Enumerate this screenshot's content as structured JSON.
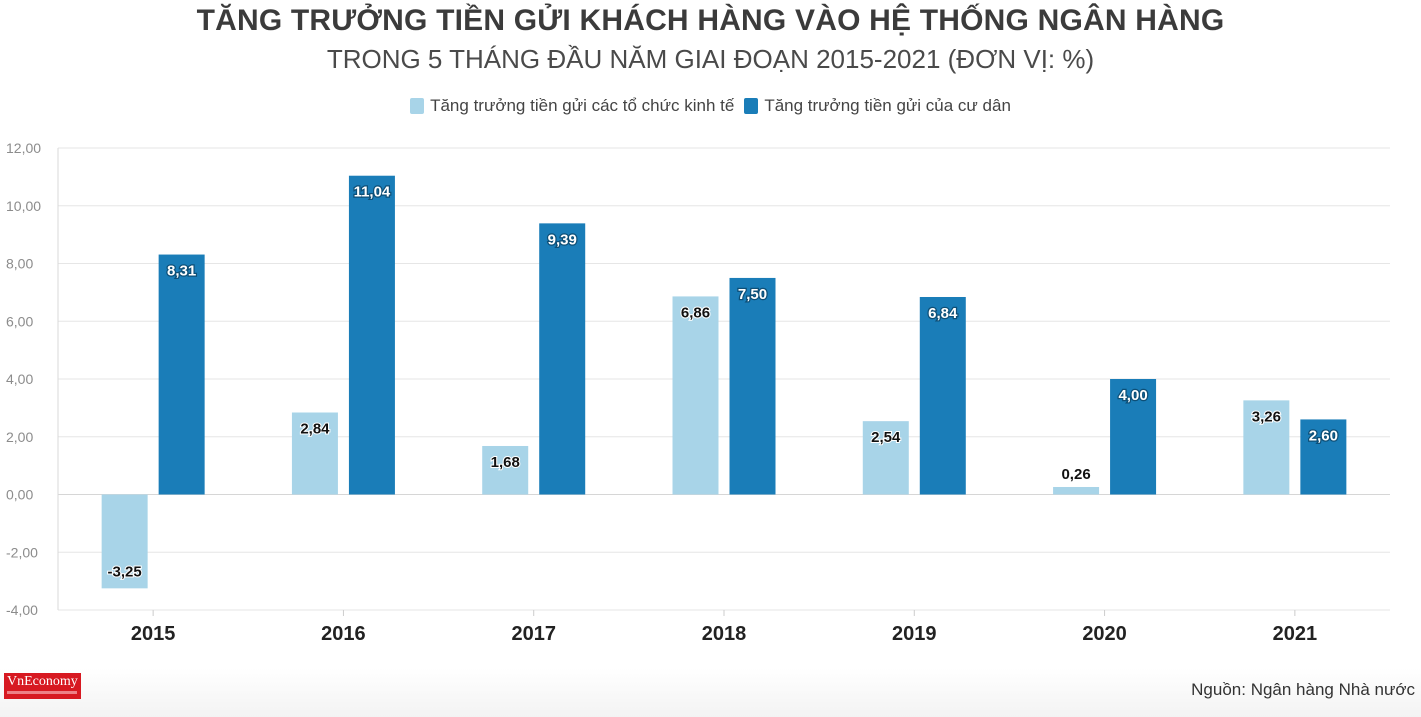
{
  "title": "TĂNG TRƯỞNG TIỀN GỬI KHÁCH HÀNG VÀO HỆ THỐNG NGÂN HÀNG",
  "subtitle": "TRONG 5 THÁNG ĐẦU NĂM GIAI ĐOẠN 2015-2021 (ĐƠN VỊ: %)",
  "logo_text": "VnEconomy",
  "source": "Nguồn: Ngân hàng Nhà nước",
  "chart_data": {
    "type": "bar",
    "categories": [
      "2015",
      "2016",
      "2017",
      "2018",
      "2019",
      "2020",
      "2021"
    ],
    "series": [
      {
        "name": "Tăng trưởng tiền gửi các tổ chức kinh tế",
        "color": "#a8d4e8",
        "values": [
          -3.25,
          2.84,
          1.68,
          6.86,
          2.54,
          0.26,
          3.26
        ],
        "labels": [
          "-3,25",
          "2,84",
          "1,68",
          "6,86",
          "2,54",
          "0,26",
          "3,26"
        ]
      },
      {
        "name": "Tăng trưởng tiền gửi của cư dân",
        "color": "#1a7db8",
        "values": [
          8.31,
          11.04,
          9.39,
          7.5,
          6.84,
          4.0,
          2.6
        ],
        "labels": [
          "8,31",
          "11,04",
          "9,39",
          "7,50",
          "6,84",
          "4,00",
          "2,60"
        ]
      }
    ],
    "yticks": [
      12,
      10,
      8,
      6,
      4,
      2,
      0,
      -2,
      -4
    ],
    "ytick_labels": [
      "12,00",
      "10,00",
      "8,00",
      "6,00",
      "4,00",
      "2,00",
      "0,00",
      "-2,00",
      "-4,00"
    ],
    "ylim": [
      -4,
      12
    ],
    "grid": true,
    "legend_position": "top-center"
  }
}
